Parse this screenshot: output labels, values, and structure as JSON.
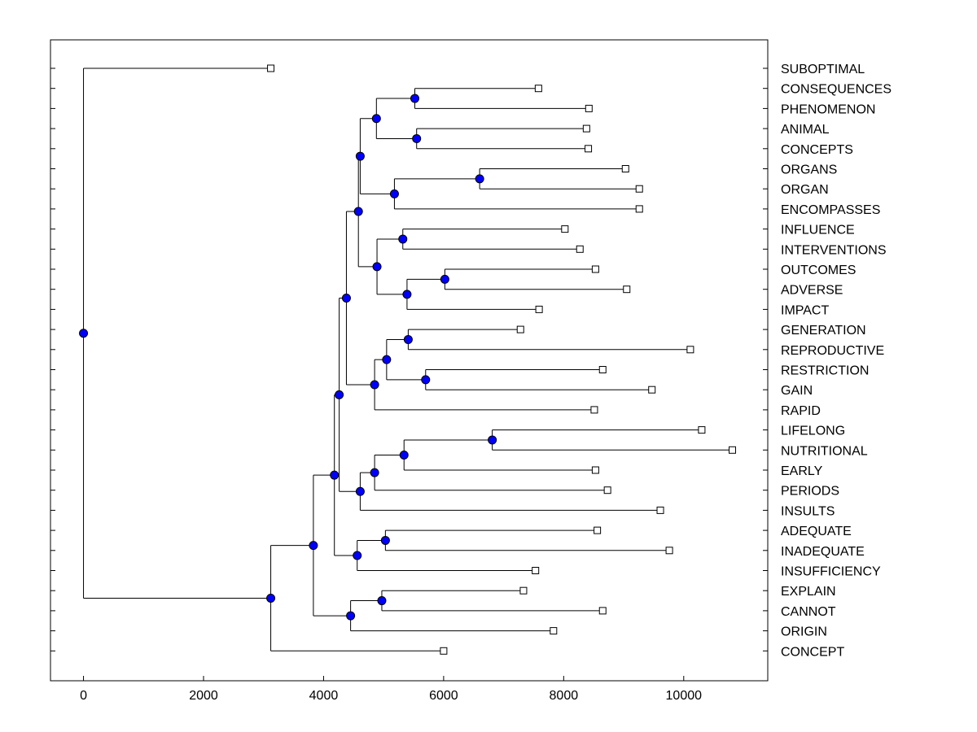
{
  "chart_data": {
    "type": "dendrogram",
    "title": "",
    "xlabel": "",
    "ylabel": "",
    "xlim": [
      -550,
      11400
    ],
    "xticks": [
      0,
      2000,
      4000,
      6000,
      8000,
      10000
    ],
    "xtick_labels": [
      "0",
      "2000",
      "4000",
      "6000",
      "8000",
      "10000"
    ],
    "colors": {
      "node": "#0000ff",
      "line": "#000000",
      "leaf_fill": "#ffffff"
    },
    "leaves": [
      {
        "label": "SUBOPTIMAL",
        "value": 3120
      },
      {
        "label": "CONSEQUENCES",
        "value": 7580
      },
      {
        "label": "PHENOMENON",
        "value": 8420
      },
      {
        "label": "ANIMAL",
        "value": 8380
      },
      {
        "label": "CONCEPTS",
        "value": 8410
      },
      {
        "label": "ORGANS",
        "value": 9030
      },
      {
        "label": "ORGAN",
        "value": 9260
      },
      {
        "label": "ENCOMPASSES",
        "value": 9260
      },
      {
        "label": "INFLUENCE",
        "value": 8020
      },
      {
        "label": "INTERVENTIONS",
        "value": 8270
      },
      {
        "label": "OUTCOMES",
        "value": 8530
      },
      {
        "label": "ADVERSE",
        "value": 9050
      },
      {
        "label": "IMPACT",
        "value": 7590
      },
      {
        "label": "GENERATION",
        "value": 7280
      },
      {
        "label": "REPRODUCTIVE",
        "value": 10110
      },
      {
        "label": "RESTRICTION",
        "value": 8650
      },
      {
        "label": "GAIN",
        "value": 9470
      },
      {
        "label": "RAPID",
        "value": 8510
      },
      {
        "label": "LIFELONG",
        "value": 10300
      },
      {
        "label": "NUTRITIONAL",
        "value": 10810
      },
      {
        "label": "EARLY",
        "value": 8530
      },
      {
        "label": "PERIODS",
        "value": 8730
      },
      {
        "label": "INSULTS",
        "value": 9610
      },
      {
        "label": "ADEQUATE",
        "value": 8560
      },
      {
        "label": "INADEQUATE",
        "value": 9760
      },
      {
        "label": "INSUFFICIENCY",
        "value": 7530
      },
      {
        "label": "EXPLAIN",
        "value": 7330
      },
      {
        "label": "CANNOT",
        "value": 8650
      },
      {
        "label": "ORIGIN",
        "value": 7830
      },
      {
        "label": "CONCEPT",
        "value": 6000
      }
    ],
    "merges": [
      {
        "id": "n1",
        "value": 5520,
        "children": [
          "L1",
          "L2"
        ]
      },
      {
        "id": "n2",
        "value": 5550,
        "children": [
          "L3",
          "L4"
        ]
      },
      {
        "id": "n3",
        "value": 4880,
        "children": [
          "n1",
          "n2"
        ]
      },
      {
        "id": "n4",
        "value": 6600,
        "children": [
          "L5",
          "L6"
        ]
      },
      {
        "id": "n5",
        "value": 5180,
        "children": [
          "n4",
          "L7"
        ]
      },
      {
        "id": "n6",
        "value": 4610,
        "children": [
          "n3",
          "n5"
        ]
      },
      {
        "id": "n7",
        "value": 5320,
        "children": [
          "L8",
          "L9"
        ]
      },
      {
        "id": "n8",
        "value": 6020,
        "children": [
          "L10",
          "L11"
        ]
      },
      {
        "id": "n9",
        "value": 5390,
        "children": [
          "n8",
          "L12"
        ]
      },
      {
        "id": "n10",
        "value": 4890,
        "children": [
          "n7",
          "n9"
        ]
      },
      {
        "id": "n11",
        "value": 4580,
        "children": [
          "n6",
          "n10"
        ]
      },
      {
        "id": "n12",
        "value": 5410,
        "children": [
          "L13",
          "L14"
        ]
      },
      {
        "id": "n13",
        "value": 5700,
        "children": [
          "L15",
          "L16"
        ]
      },
      {
        "id": "n14",
        "value": 5050,
        "children": [
          "n12",
          "n13"
        ]
      },
      {
        "id": "n15",
        "value": 4850,
        "children": [
          "n14",
          "L17"
        ]
      },
      {
        "id": "n16",
        "value": 4380,
        "children": [
          "n11",
          "n15"
        ]
      },
      {
        "id": "n17",
        "value": 6810,
        "children": [
          "L18",
          "L19"
        ]
      },
      {
        "id": "n18",
        "value": 5340,
        "children": [
          "n17",
          "L20"
        ]
      },
      {
        "id": "n19",
        "value": 4850,
        "children": [
          "n18",
          "L21"
        ]
      },
      {
        "id": "n20",
        "value": 4610,
        "children": [
          "n19",
          "L22"
        ]
      },
      {
        "id": "n21",
        "value": 4260,
        "children": [
          "n16",
          "n20"
        ]
      },
      {
        "id": "n22",
        "value": 5030,
        "children": [
          "L23",
          "L24"
        ]
      },
      {
        "id": "n23",
        "value": 4560,
        "children": [
          "n22",
          "L25"
        ]
      },
      {
        "id": "n24",
        "value": 4180,
        "children": [
          "n21",
          "n23"
        ]
      },
      {
        "id": "n25",
        "value": 3830,
        "children": [
          "n24"
        ]
      },
      {
        "id": "n26",
        "value": 4970,
        "children": [
          "L26",
          "L27"
        ]
      },
      {
        "id": "n27",
        "value": 4450,
        "children": [
          "n26",
          "L28"
        ]
      },
      {
        "id": "n28",
        "value": 3830,
        "children": [
          "n24",
          "n27"
        ]
      },
      {
        "id": "n29",
        "value": 3120,
        "children": [
          "n28",
          "L29"
        ]
      },
      {
        "id": "n30",
        "value": 0,
        "children": [
          "L0",
          "n29"
        ]
      }
    ]
  }
}
